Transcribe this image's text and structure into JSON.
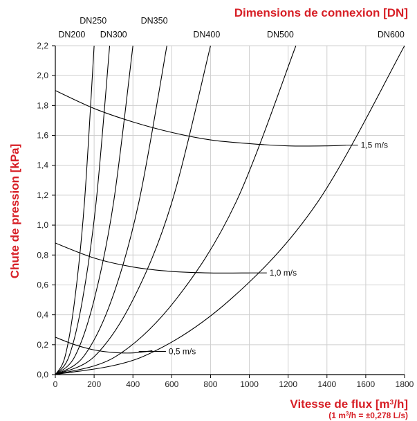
{
  "colors": {
    "accent": "#d71f26",
    "ink": "#000000",
    "grid": "#cfcfcf"
  },
  "chart_data": {
    "type": "line",
    "title": "Dimensions de connexion [DN]",
    "xlabel": "Vitesse de flux [m³/h]",
    "xlabel_note": "(1 m³/h = ±0,278 L/s)",
    "ylabel": "Chute de pression [kPa]",
    "xlim": [
      0,
      1800
    ],
    "ylim": [
      0,
      2.2
    ],
    "x_ticks": [
      "0",
      "200",
      "400",
      "600",
      "800",
      "1000",
      "1200",
      "1400",
      "1600",
      "1800"
    ],
    "y_ticks": [
      "0,0",
      "0,2",
      "0,4",
      "0,6",
      "0,8",
      "1,0",
      "1,2",
      "1,4",
      "1,6",
      "1,8",
      "2,0",
      "2,2"
    ],
    "grid": true,
    "series": [
      {
        "name": "DN200",
        "x": [
          0,
          50,
          100,
          150,
          200
        ],
        "y": [
          0,
          0.12,
          0.5,
          1.15,
          2.2
        ]
      },
      {
        "name": "DN250",
        "x": [
          0,
          70,
          140,
          210,
          280
        ],
        "y": [
          0,
          0.12,
          0.5,
          1.15,
          2.2
        ]
      },
      {
        "name": "DN300",
        "x": [
          0,
          100,
          200,
          300,
          400
        ],
        "y": [
          0,
          0.12,
          0.5,
          1.15,
          2.2
        ]
      },
      {
        "name": "DN350",
        "x": [
          0,
          145,
          290,
          430,
          575
        ],
        "y": [
          0,
          0.12,
          0.5,
          1.15,
          2.2
        ]
      },
      {
        "name": "DN400",
        "x": [
          0,
          200,
          400,
          600,
          800
        ],
        "y": [
          0,
          0.12,
          0.5,
          1.15,
          2.2
        ]
      },
      {
        "name": "DN500",
        "x": [
          0,
          310,
          620,
          930,
          1240
        ],
        "y": [
          0,
          0.12,
          0.5,
          1.15,
          2.2
        ]
      },
      {
        "name": "DN600",
        "x": [
          0,
          450,
          900,
          1350,
          1800
        ],
        "y": [
          0,
          0.12,
          0.5,
          1.15,
          2.2
        ]
      },
      {
        "name": "0,5 m/s",
        "x": [
          0,
          100,
          200,
          300,
          400,
          500
        ],
        "y": [
          0.25,
          0.2,
          0.165,
          0.148,
          0.145,
          0.16
        ]
      },
      {
        "name": "1,0 m/s",
        "x": [
          0,
          200,
          400,
          600,
          800,
          1000
        ],
        "y": [
          0.88,
          0.78,
          0.72,
          0.69,
          0.68,
          0.68
        ]
      },
      {
        "name": "1,5 m/s",
        "x": [
          0,
          200,
          400,
          600,
          800,
          1000,
          1200,
          1400,
          1500
        ],
        "y": [
          1.9,
          1.78,
          1.69,
          1.62,
          1.57,
          1.545,
          1.53,
          1.53,
          1.535
        ]
      }
    ],
    "dn_labels": [
      {
        "text": "DN200",
        "x": 85,
        "row": 2
      },
      {
        "text": "DN250",
        "x": 195,
        "row": 1
      },
      {
        "text": "DN300",
        "x": 300,
        "row": 2
      },
      {
        "text": "DN350",
        "x": 510,
        "row": 1
      },
      {
        "text": "DN400",
        "x": 780,
        "row": 2
      },
      {
        "text": "DN500",
        "x": 1160,
        "row": 2
      },
      {
        "text": "DN600",
        "x": 1730,
        "row": 2
      }
    ],
    "velocity_labels": [
      {
        "text": "0,5 m/s",
        "from": [
          430,
          0.155
        ],
        "to": [
          570,
          0.155
        ]
      },
      {
        "text": "1,0 m/s",
        "from": [
          1000,
          0.68
        ],
        "to": [
          1090,
          0.68
        ]
      },
      {
        "text": "1,5 m/s",
        "from": [
          1500,
          1.535
        ],
        "to": [
          1560,
          1.535
        ]
      }
    ]
  }
}
